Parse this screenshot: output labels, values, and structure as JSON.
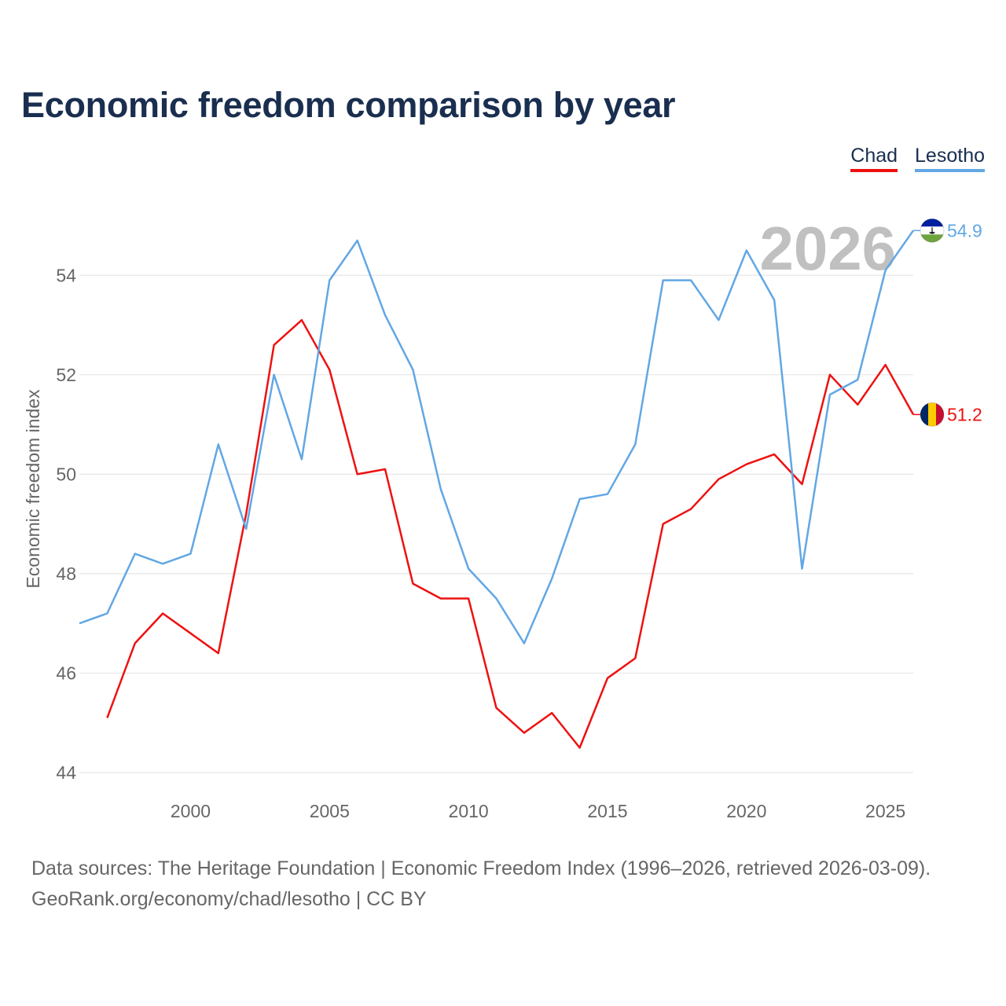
{
  "title": "Economic freedom comparison by year",
  "legend": {
    "items": [
      "Chad",
      "Lesotho"
    ]
  },
  "footer": {
    "line1": "Data sources: The Heritage Foundation | Economic Freedom Index (1996–2026, retrieved 2026-03-09).",
    "line2": "GeoRank.org/economy/chad/lesotho | CC BY"
  },
  "colors": {
    "chad": "#ee1111",
    "lesotho": "#62a7e4",
    "title": "#1a2e4f"
  },
  "chart_data": {
    "type": "line",
    "title": "Economic freedom comparison by year",
    "xlabel": "",
    "ylabel": "Economic freedom index",
    "xlim": [
      1996,
      2026
    ],
    "ylim": [
      44,
      55
    ],
    "yticks": [
      44,
      46,
      48,
      50,
      52,
      54
    ],
    "xticks": [
      2000,
      2005,
      2010,
      2015,
      2020,
      2025
    ],
    "grid": true,
    "current_year": "2026",
    "x": [
      1996,
      1997,
      1998,
      1999,
      2000,
      2001,
      2002,
      2003,
      2004,
      2005,
      2006,
      2007,
      2008,
      2009,
      2010,
      2011,
      2012,
      2013,
      2014,
      2015,
      2016,
      2017,
      2018,
      2019,
      2020,
      2021,
      2022,
      2023,
      2024,
      2025,
      2026
    ],
    "series": [
      {
        "name": "Chad",
        "color": "#ee1111",
        "end_label": "51.2",
        "values": [
          null,
          45.1,
          46.6,
          47.2,
          46.8,
          46.4,
          49.2,
          52.6,
          53.1,
          52.1,
          50.0,
          50.1,
          47.8,
          47.5,
          47.5,
          45.3,
          44.8,
          45.2,
          44.5,
          45.9,
          46.3,
          49.0,
          49.3,
          49.9,
          50.2,
          50.4,
          49.8,
          52.0,
          51.4,
          52.2,
          51.2
        ]
      },
      {
        "name": "Lesotho",
        "color": "#62a7e4",
        "end_label": "54.9",
        "values": [
          47.0,
          47.2,
          48.4,
          48.2,
          48.4,
          50.6,
          48.9,
          52.0,
          50.3,
          53.9,
          54.7,
          53.2,
          52.1,
          49.7,
          48.1,
          47.5,
          46.6,
          47.9,
          49.5,
          49.6,
          50.6,
          53.9,
          53.9,
          53.1,
          54.5,
          53.5,
          48.1,
          51.6,
          51.9,
          54.1,
          54.9
        ]
      }
    ]
  }
}
